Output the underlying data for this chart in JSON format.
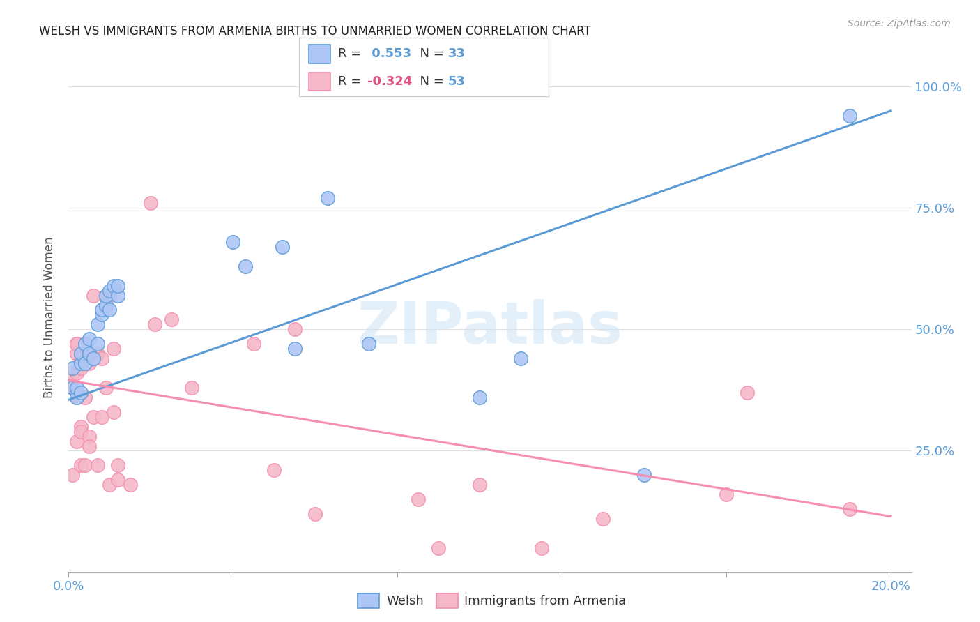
{
  "title": "WELSH VS IMMIGRANTS FROM ARMENIA BIRTHS TO UNMARRIED WOMEN CORRELATION CHART",
  "source": "Source: ZipAtlas.com",
  "ylabel": "Births to Unmarried Women",
  "watermark": "ZIPatlas",
  "legend_items": [
    {
      "label": "Welsh",
      "R": 0.553,
      "N": 33
    },
    {
      "label": "Immigrants from Armenia",
      "R": -0.324,
      "N": 53
    }
  ],
  "blue_scatter_x": [
    0.001,
    0.001,
    0.002,
    0.002,
    0.003,
    0.003,
    0.003,
    0.004,
    0.004,
    0.005,
    0.005,
    0.006,
    0.007,
    0.007,
    0.008,
    0.008,
    0.009,
    0.009,
    0.01,
    0.01,
    0.011,
    0.012,
    0.012,
    0.04,
    0.043,
    0.052,
    0.055,
    0.063,
    0.073,
    0.1,
    0.11,
    0.14,
    0.19
  ],
  "blue_scatter_y": [
    0.38,
    0.42,
    0.36,
    0.38,
    0.37,
    0.43,
    0.45,
    0.43,
    0.47,
    0.45,
    0.48,
    0.44,
    0.47,
    0.51,
    0.53,
    0.54,
    0.55,
    0.57,
    0.54,
    0.58,
    0.59,
    0.57,
    0.59,
    0.68,
    0.63,
    0.67,
    0.46,
    0.77,
    0.47,
    0.36,
    0.44,
    0.2,
    0.94
  ],
  "pink_scatter_x": [
    0.001,
    0.001,
    0.001,
    0.002,
    0.002,
    0.002,
    0.002,
    0.002,
    0.002,
    0.003,
    0.003,
    0.003,
    0.003,
    0.003,
    0.004,
    0.004,
    0.004,
    0.005,
    0.005,
    0.005,
    0.005,
    0.006,
    0.006,
    0.006,
    0.007,
    0.007,
    0.008,
    0.008,
    0.009,
    0.009,
    0.01,
    0.01,
    0.011,
    0.011,
    0.012,
    0.012,
    0.015,
    0.02,
    0.021,
    0.025,
    0.03,
    0.045,
    0.05,
    0.055,
    0.06,
    0.085,
    0.09,
    0.1,
    0.115,
    0.13,
    0.16,
    0.165,
    0.19
  ],
  "pink_scatter_y": [
    0.38,
    0.41,
    0.2,
    0.45,
    0.47,
    0.47,
    0.41,
    0.36,
    0.27,
    0.44,
    0.42,
    0.3,
    0.29,
    0.22,
    0.43,
    0.36,
    0.22,
    0.44,
    0.43,
    0.28,
    0.26,
    0.44,
    0.32,
    0.57,
    0.45,
    0.22,
    0.44,
    0.32,
    0.38,
    0.57,
    0.57,
    0.18,
    0.46,
    0.33,
    0.22,
    0.19,
    0.18,
    0.76,
    0.51,
    0.52,
    0.38,
    0.47,
    0.21,
    0.5,
    0.12,
    0.15,
    0.05,
    0.18,
    0.05,
    0.11,
    0.16,
    0.37,
    0.13
  ],
  "blue_line_x": [
    0.0,
    0.2
  ],
  "blue_line_y": [
    0.355,
    0.95
  ],
  "pink_line_x": [
    0.0,
    0.2
  ],
  "pink_line_y": [
    0.395,
    0.115
  ],
  "xlim": [
    0.0,
    0.205
  ],
  "ylim": [
    0.0,
    1.05
  ],
  "blue_color": "#5b9bd5",
  "pink_color": "#f48fb1",
  "blue_fill": "#aec6f5",
  "pink_fill": "#f5b8c8",
  "grid_color": "#e0e0e0",
  "axis_label_color": "#5b9bd5",
  "title_color": "#222222",
  "source_color": "#999999",
  "pink_R_color": "#e05080"
}
